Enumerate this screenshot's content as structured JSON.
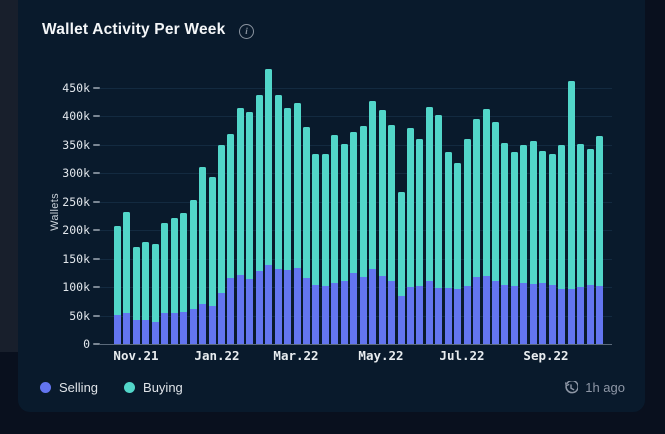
{
  "card": {
    "title": "Wallet Activity Per Week",
    "info_icon": "i",
    "updated_label": "1h ago"
  },
  "legend": [
    {
      "label": "Selling",
      "color": "#6375f0"
    },
    {
      "label": "Buying",
      "color": "#52d6c9"
    }
  ],
  "colors": {
    "page_bg": "#09101e",
    "card_bg": "#091a2c",
    "gridline": "#132a40",
    "axis_line": "#5b6a7b",
    "selling": "#6375f0",
    "buying": "#52d6c9"
  },
  "chart_data": {
    "type": "bar",
    "stacked": true,
    "title": "Wallet Activity Per Week",
    "xlabel": "",
    "ylabel": "Wallets",
    "x_tick_labels": [
      "Nov.21",
      "Jan.22",
      "Mar.22",
      "May.22",
      "Jul.22",
      "Sep.22"
    ],
    "y_tick_labels": [
      "0",
      "50k",
      "100k",
      "150k",
      "200k",
      "250k",
      "300k",
      "350k",
      "400k",
      "450k"
    ],
    "ylim": [
      0,
      470
    ],
    "values_unit": "thousands of wallets per week (52 weekly bars, Nov 2021 - Oct 2022)",
    "grid": true,
    "legend_position": "bottom-left",
    "series": [
      {
        "name": "Selling",
        "color": "#6375f0",
        "values": [
          51,
          55,
          43,
          42,
          39,
          55,
          55,
          57,
          61,
          71,
          67,
          89,
          116,
          122,
          114,
          129,
          138,
          132,
          130,
          134,
          116,
          104,
          102,
          108,
          110,
          125,
          118,
          131,
          120,
          110,
          84,
          101,
          102,
          111,
          99,
          98,
          96,
          102,
          118,
          120,
          111,
          104,
          102,
          107,
          106,
          108,
          104,
          96,
          96,
          101,
          104,
          102
        ]
      },
      {
        "name": "Buying",
        "color": "#52d6c9",
        "values": [
          156,
          177,
          127,
          137,
          137,
          157,
          167,
          174,
          192,
          241,
          226,
          261,
          254,
          293,
          293,
          308,
          346,
          305,
          284,
          290,
          265,
          230,
          232,
          259,
          242,
          247,
          266,
          297,
          292,
          275,
          183,
          278,
          259,
          306,
          304,
          240,
          223,
          259,
          278,
          293,
          279,
          249,
          235,
          242,
          250,
          232,
          230,
          253,
          366,
          251,
          239,
          264
        ]
      }
    ]
  }
}
